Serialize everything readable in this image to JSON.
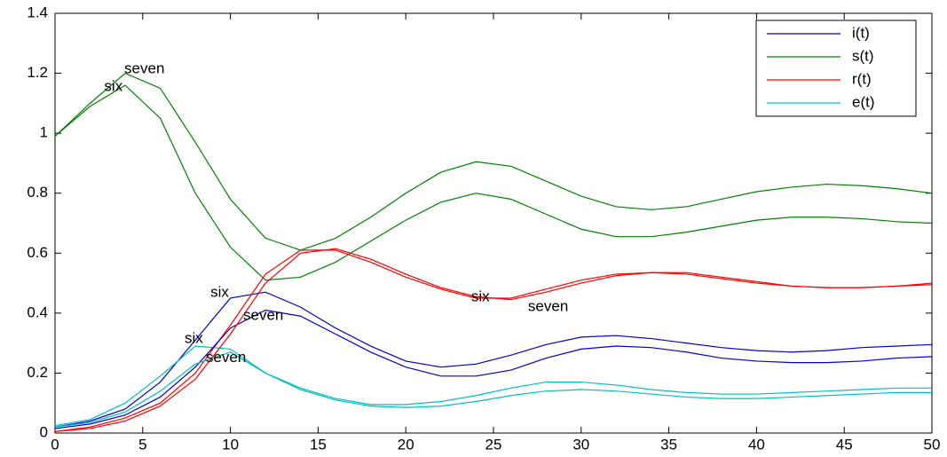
{
  "chart_data": {
    "type": "line",
    "x": [
      0,
      2,
      4,
      6,
      8,
      10,
      12,
      14,
      16,
      18,
      20,
      22,
      24,
      26,
      28,
      30,
      32,
      34,
      36,
      38,
      40,
      42,
      44,
      46,
      48,
      50
    ],
    "series": [
      {
        "name": "i(t)",
        "color": "#0000cc",
        "values": [
          0.02,
          0.04,
          0.08,
          0.17,
          0.31,
          0.45,
          0.47,
          0.42,
          0.35,
          0.29,
          0.24,
          0.22,
          0.23,
          0.26,
          0.295,
          0.32,
          0.325,
          0.315,
          0.3,
          0.285,
          0.275,
          0.27,
          0.275,
          0.285,
          0.29,
          0.295
        ]
      },
      {
        "name": "s(t)",
        "color": "#008000",
        "values": [
          0.99,
          1.09,
          1.16,
          1.05,
          0.8,
          0.62,
          0.51,
          0.52,
          0.57,
          0.64,
          0.71,
          0.77,
          0.8,
          0.78,
          0.73,
          0.68,
          0.655,
          0.655,
          0.67,
          0.69,
          0.71,
          0.72,
          0.72,
          0.715,
          0.705,
          0.7
        ]
      },
      {
        "name": "r(t)",
        "color": "#ff0000",
        "values": [
          0.005,
          0.02,
          0.05,
          0.1,
          0.2,
          0.36,
          0.53,
          0.61,
          0.61,
          0.57,
          0.52,
          0.48,
          0.45,
          0.45,
          0.48,
          0.51,
          0.53,
          0.535,
          0.53,
          0.515,
          0.5,
          0.49,
          0.485,
          0.485,
          0.49,
          0.495
        ]
      },
      {
        "name": "e(t)",
        "color": "#00bfbf",
        "values": [
          0.025,
          0.045,
          0.1,
          0.19,
          0.29,
          0.28,
          0.2,
          0.15,
          0.115,
          0.095,
          0.095,
          0.105,
          0.125,
          0.15,
          0.17,
          0.17,
          0.16,
          0.145,
          0.135,
          0.13,
          0.13,
          0.135,
          0.14,
          0.145,
          0.15,
          0.15
        ]
      },
      {
        "color": "#0000cc",
        "values": [
          0.015,
          0.03,
          0.06,
          0.12,
          0.22,
          0.35,
          0.41,
          0.39,
          0.33,
          0.27,
          0.22,
          0.19,
          0.19,
          0.21,
          0.25,
          0.28,
          0.29,
          0.285,
          0.27,
          0.25,
          0.24,
          0.235,
          0.235,
          0.24,
          0.25,
          0.255
        ]
      },
      {
        "color": "#008000",
        "values": [
          0.99,
          1.1,
          1.2,
          1.15,
          0.97,
          0.78,
          0.65,
          0.61,
          0.65,
          0.72,
          0.8,
          0.87,
          0.905,
          0.89,
          0.84,
          0.79,
          0.755,
          0.745,
          0.755,
          0.78,
          0.805,
          0.82,
          0.83,
          0.825,
          0.815,
          0.8
        ]
      },
      {
        "color": "#ff0000",
        "values": [
          0.005,
          0.015,
          0.04,
          0.09,
          0.18,
          0.33,
          0.5,
          0.6,
          0.615,
          0.58,
          0.53,
          0.485,
          0.455,
          0.445,
          0.47,
          0.5,
          0.525,
          0.535,
          0.535,
          0.52,
          0.505,
          0.49,
          0.485,
          0.485,
          0.49,
          0.5
        ]
      },
      {
        "color": "#00bfbf",
        "values": [
          0.02,
          0.035,
          0.07,
          0.14,
          0.23,
          0.27,
          0.2,
          0.145,
          0.11,
          0.09,
          0.085,
          0.09,
          0.105,
          0.125,
          0.14,
          0.145,
          0.14,
          0.13,
          0.12,
          0.115,
          0.115,
          0.12,
          0.125,
          0.13,
          0.135,
          0.135
        ]
      }
    ],
    "annotations": [
      {
        "text": "six",
        "x": 2.8,
        "y": 1.154
      },
      {
        "text": "seven",
        "x": 3.95,
        "y": 1.213
      },
      {
        "text": "six",
        "x": 8.86,
        "y": 0.468
      },
      {
        "text": "seven",
        "x": 10.73,
        "y": 0.39
      },
      {
        "text": "six",
        "x": 7.39,
        "y": 0.314
      },
      {
        "text": "seven",
        "x": 8.6,
        "y": 0.25
      },
      {
        "text": "six",
        "x": 23.73,
        "y": 0.453
      },
      {
        "text": "seven",
        "x": 26.97,
        "y": 0.42
      }
    ],
    "xlim": [
      0,
      50
    ],
    "xticks": [
      0,
      5,
      10,
      15,
      20,
      25,
      30,
      35,
      40,
      45,
      50
    ],
    "ylim": [
      0,
      1.4
    ],
    "yticks": [
      0,
      0.2,
      0.4,
      0.6,
      0.8,
      1,
      1.2,
      1.4
    ],
    "legend": "northeast"
  }
}
